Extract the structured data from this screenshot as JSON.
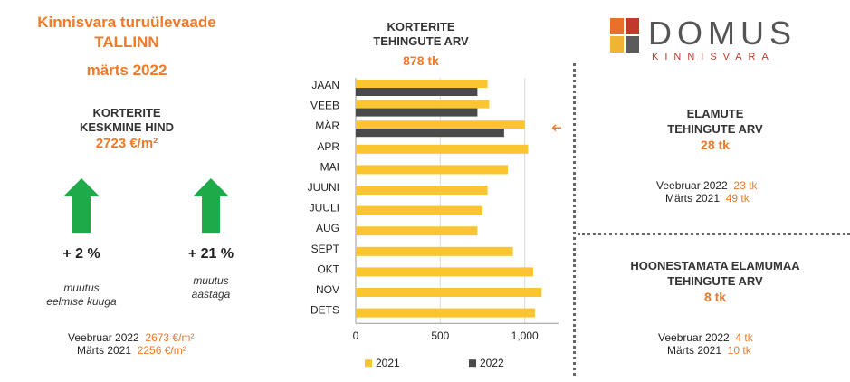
{
  "left": {
    "title": "Kinnisvara turuülevaade",
    "city": "TALLINN",
    "period": "märts 2022",
    "price_heading_1": "KORTERITE",
    "price_heading_2": "KESKMINE HIND",
    "price_value": "2723 €/m²",
    "change_month": "+ 2 %",
    "change_month_label_1": "muutus",
    "change_month_label_2": "eelmise kuuga",
    "change_year": "+ 21 %",
    "change_year_label_1": "muutus",
    "change_year_label_2": "aastaga",
    "cmp1_label": "Veebruar 2022",
    "cmp1_value": "2673 €/m²",
    "cmp2_label": "Märts 2021",
    "cmp2_value": "2256 €/m²",
    "arrow_color": "#1faa4a"
  },
  "center": {
    "heading_1": "KORTERITE",
    "heading_2": "TEHINGUTE ARV",
    "value": "878 tk"
  },
  "right": {
    "homes_heading_1": "ELAMUTE",
    "homes_heading_2": "TEHINGUTE ARV",
    "homes_value": "28 tk",
    "homes_cmp1_label": "Veebruar 2022",
    "homes_cmp1_value": "23 tk",
    "homes_cmp2_label": "Märts 2021",
    "homes_cmp2_value": "49 tk",
    "land_heading_1": "HOONESTAMATA ELAMUMAA",
    "land_heading_2": "TEHINGUTE ARV",
    "land_value": "8 tk",
    "land_cmp1_label": "Veebruar 2022",
    "land_cmp1_value": "4 tk",
    "land_cmp2_label": "Märts 2021",
    "land_cmp2_value": "10 tk"
  },
  "logo": {
    "name": "DOMUS",
    "sub": "KINNISVARA",
    "colors": [
      "#e8702a",
      "#c0392b",
      "#f2b233",
      "#5b5b5b"
    ]
  },
  "chart_data": {
    "type": "bar",
    "orientation": "horizontal",
    "categories": [
      "JAAN",
      "VEEB",
      "MÄR",
      "APR",
      "MAI",
      "JUUNI",
      "JUULI",
      "AUG",
      "SEPT",
      "OKT",
      "NOV",
      "DETS"
    ],
    "series": [
      {
        "name": "2021",
        "color": "#fbc531",
        "values": [
          780,
          790,
          1000,
          1020,
          900,
          780,
          750,
          720,
          930,
          1050,
          1100,
          1060
        ]
      },
      {
        "name": "2022",
        "color": "#4a4a4a",
        "values": [
          720,
          720,
          878,
          null,
          null,
          null,
          null,
          null,
          null,
          null,
          null,
          null
        ]
      }
    ],
    "xlim": [
      0,
      1200
    ],
    "xticks": [
      0,
      500,
      1000
    ],
    "xtick_labels": [
      "0",
      "500",
      "1,000"
    ],
    "grid": true,
    "legend": "bottom",
    "annotation": "←"
  }
}
